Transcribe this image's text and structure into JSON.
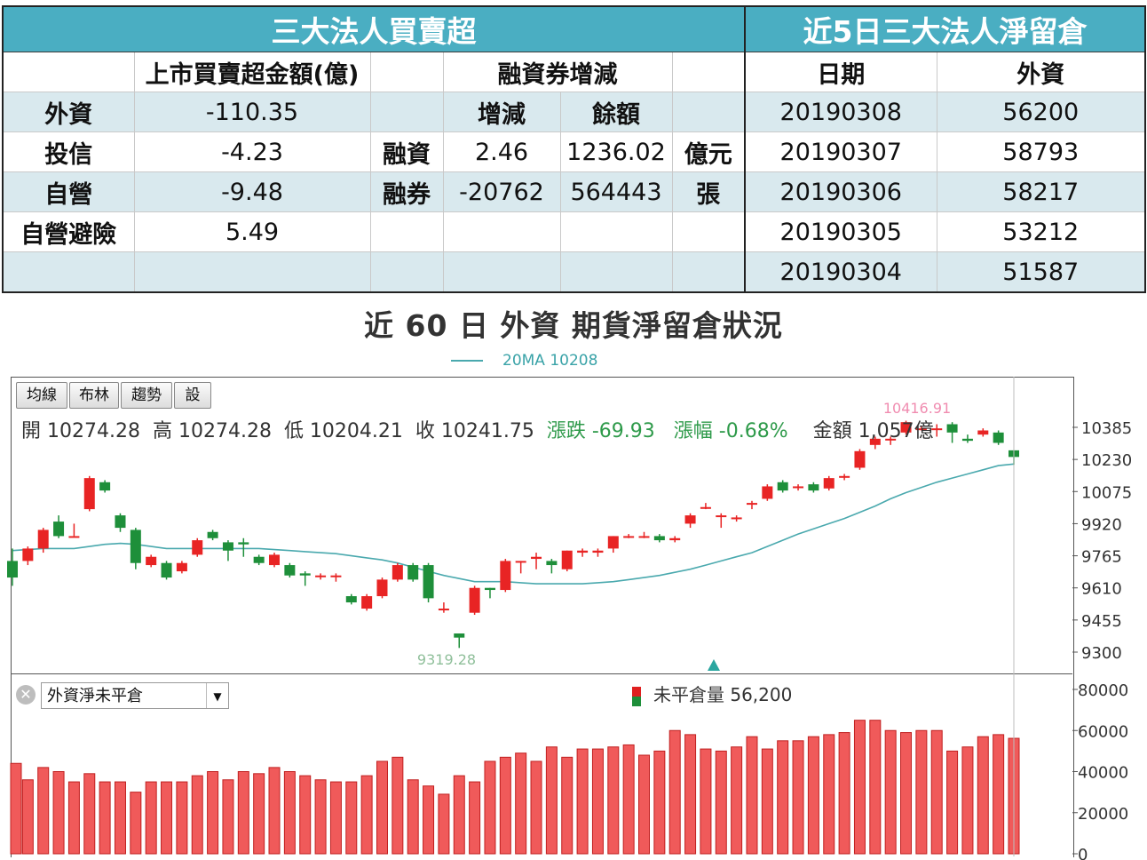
{
  "left_table": {
    "title": "三大法人買賣超",
    "headers": [
      "",
      "上市買賣超金額(億)",
      "",
      "融資券增減",
      ""
    ],
    "subheaders": [
      "增減",
      "餘額"
    ],
    "rows": [
      {
        "name": "外資",
        "amount": "-110.35",
        "type": "",
        "change": "",
        "balance": "",
        "unit": ""
      },
      {
        "name": "投信",
        "amount": "-4.23",
        "type": "融資",
        "change": "2.46",
        "balance": "1236.02",
        "unit": "億元"
      },
      {
        "name": "自營",
        "amount": "-9.48",
        "type": "融券",
        "change": "-20762",
        "balance": "564443",
        "unit": "張"
      },
      {
        "name": "自營避險",
        "amount": "5.49",
        "type": "",
        "change": "",
        "balance": "",
        "unit": ""
      },
      {
        "name": "",
        "amount": "",
        "type": "",
        "change": "",
        "balance": "",
        "unit": ""
      }
    ]
  },
  "right_table": {
    "title": "近5日三大法人淨留倉",
    "headers": [
      "日期",
      "外資"
    ],
    "rows": [
      [
        "20190308",
        "56200"
      ],
      [
        "20190307",
        "58793"
      ],
      [
        "20190306",
        "58217"
      ],
      [
        "20190305",
        "53212"
      ],
      [
        "20190304",
        "51587"
      ]
    ]
  },
  "chart_title": "近 60 日 外資 期貨淨留倉狀況",
  "legend": {
    "ma_label": "20MA 10208"
  },
  "toolbar": [
    "均線",
    "布林",
    "趨勢",
    "設"
  ],
  "ohlc": {
    "open": "開 10274.28",
    "high": "高 10274.28",
    "low": "低 10204.21",
    "close": "收 10241.75",
    "change": "漲跌 -69.93",
    "pct": "漲幅  -0.68%",
    "amount": "金額 1,057億"
  },
  "colors": {
    "up": "#e82424",
    "down": "#1e8f3a",
    "ma": "#4aa9ae",
    "bar": "#f05a5a",
    "header": "#4aaec2"
  },
  "chart_data": [
    {
      "type": "candlestick",
      "ytick_labels": [
        "10385",
        "10230",
        "10075",
        "9920",
        "9765",
        "9610",
        "9455",
        "9300"
      ],
      "annotations": {
        "high_label": "10416.91",
        "low_label": "9319.28"
      },
      "candles": [
        {
          "o": 9740,
          "c": 9660,
          "h": 9800,
          "l": 9620
        },
        {
          "o": 9740,
          "c": 9800,
          "h": 9810,
          "l": 9720
        },
        {
          "o": 9800,
          "c": 9890,
          "h": 9900,
          "l": 9780
        },
        {
          "o": 9930,
          "c": 9860,
          "h": 9960,
          "l": 9850
        },
        {
          "o": 9860,
          "c": 9860,
          "h": 9920,
          "l": 9860
        },
        {
          "o": 9990,
          "c": 10140,
          "h": 10150,
          "l": 9980
        },
        {
          "o": 10120,
          "c": 10080,
          "h": 10130,
          "l": 10070
        },
        {
          "o": 9960,
          "c": 9900,
          "h": 9970,
          "l": 9880
        },
        {
          "o": 9890,
          "c": 9730,
          "h": 9900,
          "l": 9700
        },
        {
          "o": 9720,
          "c": 9760,
          "h": 9770,
          "l": 9710
        },
        {
          "o": 9730,
          "c": 9660,
          "h": 9740,
          "l": 9650
        },
        {
          "o": 9690,
          "c": 9730,
          "h": 9740,
          "l": 9680
        },
        {
          "o": 9770,
          "c": 9840,
          "h": 9850,
          "l": 9760
        },
        {
          "o": 9880,
          "c": 9850,
          "h": 9890,
          "l": 9840
        },
        {
          "o": 9830,
          "c": 9790,
          "h": 9840,
          "l": 9740
        },
        {
          "o": 9830,
          "c": 9820,
          "h": 9850,
          "l": 9760
        },
        {
          "o": 9760,
          "c": 9730,
          "h": 9770,
          "l": 9720
        },
        {
          "o": 9720,
          "c": 9770,
          "h": 9780,
          "l": 9710
        },
        {
          "o": 9720,
          "c": 9670,
          "h": 9730,
          "l": 9660
        },
        {
          "o": 9680,
          "c": 9670,
          "h": 9690,
          "l": 9620
        },
        {
          "o": 9670,
          "c": 9670,
          "h": 9680,
          "l": 9650
        },
        {
          "o": 9670,
          "c": 9670,
          "h": 9680,
          "l": 9640
        },
        {
          "o": 9570,
          "c": 9540,
          "h": 9580,
          "l": 9530
        },
        {
          "o": 9510,
          "c": 9570,
          "h": 9580,
          "l": 9500
        },
        {
          "o": 9570,
          "c": 9650,
          "h": 9660,
          "l": 9560
        },
        {
          "o": 9650,
          "c": 9720,
          "h": 9730,
          "l": 9640
        },
        {
          "o": 9720,
          "c": 9650,
          "h": 9730,
          "l": 9640
        },
        {
          "o": 9720,
          "c": 9560,
          "h": 9730,
          "l": 9540
        },
        {
          "o": 9510,
          "c": 9510,
          "h": 9540,
          "l": 9490
        },
        {
          "o": 9390,
          "c": 9370,
          "h": 9390,
          "l": 9320
        },
        {
          "o": 9490,
          "c": 9610,
          "h": 9620,
          "l": 9480
        },
        {
          "o": 9610,
          "c": 9600,
          "h": 9610,
          "l": 9560
        },
        {
          "o": 9600,
          "c": 9740,
          "h": 9750,
          "l": 9590
        },
        {
          "o": 9740,
          "c": 9740,
          "h": 9740,
          "l": 9680
        },
        {
          "o": 9750,
          "c": 9760,
          "h": 9780,
          "l": 9700
        },
        {
          "o": 9740,
          "c": 9720,
          "h": 9750,
          "l": 9680
        },
        {
          "o": 9700,
          "c": 9790,
          "h": 9790,
          "l": 9690
        },
        {
          "o": 9780,
          "c": 9790,
          "h": 9800,
          "l": 9760
        },
        {
          "o": 9780,
          "c": 9790,
          "h": 9800,
          "l": 9760
        },
        {
          "o": 9800,
          "c": 9860,
          "h": 9860,
          "l": 9780
        },
        {
          "o": 9860,
          "c": 9860,
          "h": 9870,
          "l": 9850
        },
        {
          "o": 9860,
          "c": 9860,
          "h": 9880,
          "l": 9850
        },
        {
          "o": 9860,
          "c": 9840,
          "h": 9870,
          "l": 9830
        },
        {
          "o": 9840,
          "c": 9850,
          "h": 9860,
          "l": 9830
        },
        {
          "o": 9920,
          "c": 9960,
          "h": 9970,
          "l": 9900
        },
        {
          "o": 10000,
          "c": 10000,
          "h": 10020,
          "l": 9990
        },
        {
          "o": 9960,
          "c": 9960,
          "h": 9970,
          "l": 9900
        },
        {
          "o": 9950,
          "c": 9950,
          "h": 9960,
          "l": 9930
        },
        {
          "o": 10020,
          "c": 10020,
          "h": 10030,
          "l": 9990
        },
        {
          "o": 10040,
          "c": 10100,
          "h": 10110,
          "l": 10030
        },
        {
          "o": 10120,
          "c": 10080,
          "h": 10130,
          "l": 10070
        },
        {
          "o": 10100,
          "c": 10100,
          "h": 10110,
          "l": 10080
        },
        {
          "o": 10110,
          "c": 10080,
          "h": 10120,
          "l": 10070
        },
        {
          "o": 10090,
          "c": 10140,
          "h": 10150,
          "l": 10080
        },
        {
          "o": 10150,
          "c": 10150,
          "h": 10160,
          "l": 10130
        },
        {
          "o": 10190,
          "c": 10270,
          "h": 10280,
          "l": 10180
        },
        {
          "o": 10300,
          "c": 10330,
          "h": 10340,
          "l": 10280
        },
        {
          "o": 10330,
          "c": 10330,
          "h": 10340,
          "l": 10300
        },
        {
          "o": 10360,
          "c": 10410,
          "h": 10417,
          "l": 10350
        },
        {
          "o": 10380,
          "c": 10380,
          "h": 10390,
          "l": 10370
        },
        {
          "o": 10380,
          "c": 10380,
          "h": 10400,
          "l": 10340
        },
        {
          "o": 10400,
          "c": 10360,
          "h": 10410,
          "l": 10310
        },
        {
          "o": 10330,
          "c": 10320,
          "h": 10350,
          "l": 10310
        },
        {
          "o": 10350,
          "c": 10370,
          "h": 10380,
          "l": 10340
        },
        {
          "o": 10360,
          "c": 10310,
          "h": 10370,
          "l": 10300
        },
        {
          "o": 10274,
          "c": 10242,
          "h": 10274,
          "l": 10204
        }
      ],
      "ma20": [
        9790,
        9795,
        9800,
        9800,
        9800,
        9810,
        9820,
        9825,
        9820,
        9810,
        9800,
        9800,
        9800,
        9800,
        9800,
        9800,
        9800,
        9795,
        9790,
        9785,
        9780,
        9775,
        9765,
        9755,
        9745,
        9730,
        9710,
        9690,
        9670,
        9655,
        9640,
        9640,
        9640,
        9635,
        9630,
        9630,
        9630,
        9630,
        9635,
        9640,
        9650,
        9660,
        9670,
        9685,
        9700,
        9720,
        9740,
        9760,
        9780,
        9810,
        9840,
        9870,
        9895,
        9920,
        9945,
        9975,
        10005,
        10040,
        10070,
        10095,
        10120,
        10140,
        10160,
        10180,
        10200,
        10208
      ]
    },
    {
      "type": "bar",
      "series": [
        {
          "name": "未平倉量",
          "values": [
            44000,
            36000,
            42000,
            40000,
            35000,
            39000,
            35000,
            35000,
            30000,
            35000,
            35000,
            35000,
            38000,
            40000,
            36000,
            40000,
            39000,
            42000,
            40000,
            38000,
            36000,
            35000,
            35000,
            38000,
            45000,
            47000,
            36000,
            33000,
            29000,
            38000,
            35000,
            45000,
            47000,
            49000,
            45000,
            52000,
            47000,
            51000,
            51000,
            52000,
            53000,
            48000,
            50000,
            60000,
            58000,
            51000,
            50000,
            52000,
            57000,
            51000,
            55000,
            55000,
            57000,
            58000,
            59000,
            65000,
            65000,
            60000,
            59000,
            60000,
            60000,
            50000,
            52000,
            57000,
            58000,
            56200
          ]
        }
      ],
      "ytick_labels": [
        "80000",
        "60000",
        "40000",
        "20000",
        "0"
      ],
      "legend": "未平倉量 56,200",
      "selector": "外資淨未平倉"
    }
  ]
}
